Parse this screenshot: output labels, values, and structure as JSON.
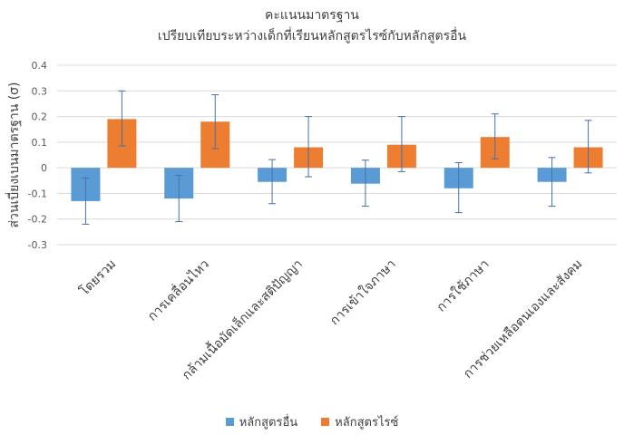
{
  "chart_data": {
    "type": "bar",
    "title": "คะแนนมาตรฐาน",
    "subtitle": "เปรียบเทียบระหว่างเด็กที่เรียนหลักสูตรไรซ์กับหลักสูตรอื่น",
    "ylabel": "ส่วนเบี่ยงเบนมาตรฐาน (σ)",
    "xlabel": "",
    "ylim": [
      -0.3,
      0.4
    ],
    "yticks": [
      "0.4",
      "0.3",
      "0.2",
      "0.1",
      "0",
      "-0.1",
      "-0.2",
      "-0.3"
    ],
    "ytick_values": [
      0.4,
      0.3,
      0.2,
      0.1,
      0,
      -0.1,
      -0.2,
      -0.3
    ],
    "grid": true,
    "legend_position": "bottom",
    "categories": [
      "โดยรวม",
      "การเคลื่อนไหว",
      "กล้ามเนื้อมัดเล็กและสติปัญญา",
      "การเข้าใจภาษา",
      "การใช้ภาษา",
      "การช่วยเหลือตนเองและสังคม"
    ],
    "series": [
      {
        "name": "หลักสูตรอื่น",
        "color": "#5b9bd5",
        "values": [
          -0.13,
          -0.12,
          -0.055,
          -0.062,
          -0.08,
          -0.055
        ],
        "error_low": [
          -0.22,
          -0.21,
          -0.14,
          -0.15,
          -0.175,
          -0.15
        ],
        "error_high": [
          -0.04,
          -0.03,
          0.032,
          0.03,
          0.02,
          0.04
        ]
      },
      {
        "name": "หลักสูตรไรซ์",
        "color": "#ed7d31",
        "values": [
          0.19,
          0.18,
          0.08,
          0.09,
          0.12,
          0.08
        ],
        "error_low": [
          0.085,
          0.075,
          -0.035,
          -0.015,
          0.035,
          -0.02
        ],
        "error_high": [
          0.3,
          0.285,
          0.2,
          0.2,
          0.21,
          0.185
        ]
      }
    ]
  }
}
